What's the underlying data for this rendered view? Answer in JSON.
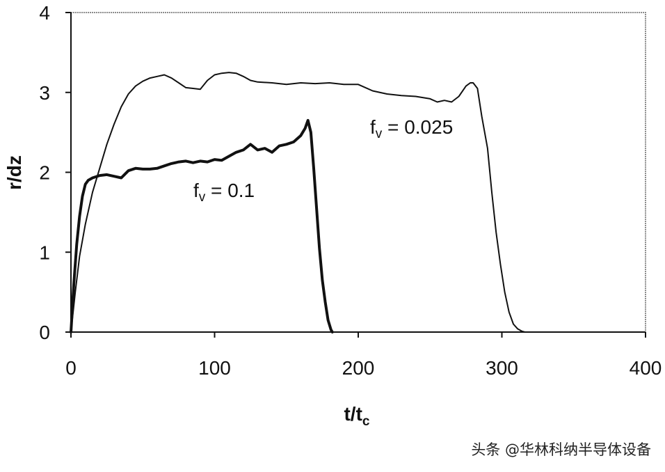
{
  "chart_data": {
    "type": "line",
    "xlabel": "t/t",
    "xlabel_sub": "c",
    "ylabel": "r/dz",
    "xlim": [
      0,
      400
    ],
    "ylim": [
      0,
      4
    ],
    "x_ticks": [
      "0",
      "100",
      "200",
      "300",
      "400"
    ],
    "y_ticks": [
      "0",
      "1",
      "2",
      "3",
      "4"
    ],
    "grid": false,
    "annotations": [
      {
        "label": "f",
        "sub": "v",
        "rest": " = 0.1"
      },
      {
        "label": "f",
        "sub": "v",
        "rest": " = 0.025"
      }
    ],
    "series": [
      {
        "name": "fv = 0.1",
        "line_width": "thick",
        "x": [
          0,
          2,
          4,
          6,
          8,
          10,
          12,
          15,
          20,
          25,
          30,
          35,
          40,
          45,
          50,
          55,
          60,
          65,
          70,
          75,
          80,
          85,
          90,
          95,
          100,
          105,
          110,
          115,
          120,
          125,
          130,
          135,
          140,
          145,
          150,
          155,
          160,
          163,
          165,
          167,
          169,
          171,
          173,
          175,
          177,
          179,
          181,
          182
        ],
        "y": [
          0.0,
          0.6,
          1.1,
          1.45,
          1.7,
          1.85,
          1.9,
          1.93,
          1.96,
          1.97,
          1.95,
          1.93,
          2.02,
          2.05,
          2.04,
          2.04,
          2.05,
          2.08,
          2.11,
          2.13,
          2.14,
          2.12,
          2.14,
          2.13,
          2.16,
          2.15,
          2.2,
          2.25,
          2.28,
          2.35,
          2.28,
          2.3,
          2.25,
          2.33,
          2.35,
          2.38,
          2.46,
          2.55,
          2.65,
          2.5,
          2.05,
          1.55,
          1.05,
          0.65,
          0.38,
          0.15,
          0.03,
          0.0
        ]
      },
      {
        "name": "fv = 0.025",
        "line_width": "thin",
        "x": [
          0,
          3,
          6,
          10,
          15,
          20,
          25,
          30,
          35,
          40,
          45,
          50,
          55,
          60,
          65,
          70,
          75,
          80,
          85,
          90,
          95,
          100,
          105,
          110,
          115,
          120,
          125,
          130,
          140,
          150,
          160,
          170,
          180,
          190,
          200,
          210,
          220,
          230,
          240,
          250,
          255,
          260,
          265,
          270,
          275,
          278,
          280,
          283,
          286,
          290,
          293,
          296,
          299,
          302,
          305,
          308,
          311,
          314,
          316
        ],
        "y": [
          0.0,
          0.5,
          0.95,
          1.35,
          1.75,
          2.05,
          2.35,
          2.6,
          2.82,
          2.98,
          3.08,
          3.14,
          3.18,
          3.2,
          3.22,
          3.18,
          3.12,
          3.06,
          3.05,
          3.04,
          3.15,
          3.22,
          3.24,
          3.25,
          3.24,
          3.2,
          3.15,
          3.13,
          3.12,
          3.1,
          3.12,
          3.11,
          3.12,
          3.1,
          3.1,
          3.02,
          2.98,
          2.96,
          2.95,
          2.92,
          2.88,
          2.9,
          2.88,
          2.95,
          3.08,
          3.12,
          3.12,
          3.05,
          2.7,
          2.3,
          1.75,
          1.25,
          0.85,
          0.5,
          0.25,
          0.1,
          0.04,
          0.01,
          0.0
        ]
      }
    ]
  },
  "watermark": {
    "text": "头条 @华林科纳半导体设备"
  }
}
